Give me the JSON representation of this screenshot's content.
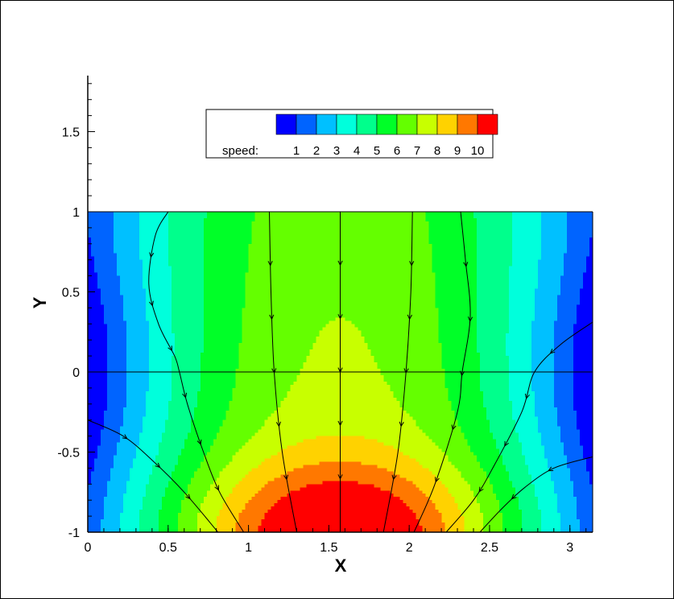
{
  "chart_data": {
    "type": "heatmap",
    "title": "",
    "xlabel": "X",
    "ylabel": "Y",
    "xlim": [
      0,
      3.1416
    ],
    "ylim": [
      -1,
      1.85
    ],
    "data_ylim": [
      -1,
      1
    ],
    "x_ticks": [
      0,
      0.5,
      1,
      1.5,
      2,
      2.5,
      3
    ],
    "x_tick_labels": [
      "0",
      "0.5",
      "1",
      "1.5",
      "2",
      "2.5",
      "3"
    ],
    "y_ticks": [
      -1,
      -0.5,
      0,
      0.5,
      1,
      1.5
    ],
    "y_tick_labels": [
      "-1",
      "-0.5",
      "0",
      "0.5",
      "1",
      "1.5"
    ],
    "legend": {
      "title": "speed:",
      "placement": "top-center",
      "levels": [
        {
          "label": "",
          "color": "#0000ff"
        },
        {
          "label": "1",
          "color": "#0064ff"
        },
        {
          "label": "2",
          "color": "#00c0ff"
        },
        {
          "label": "3",
          "color": "#00ffdc"
        },
        {
          "label": "4",
          "color": "#00ff8c"
        },
        {
          "label": "5",
          "color": "#00ff28"
        },
        {
          "label": "6",
          "color": "#64ff00"
        },
        {
          "label": "7",
          "color": "#c8ff00"
        },
        {
          "label": "8",
          "color": "#ffd200"
        },
        {
          "label": "9",
          "color": "#ff7800"
        },
        {
          "label": "10",
          "color": "#ff0000"
        }
      ]
    },
    "contour_levels": [
      1,
      2,
      3,
      4,
      5,
      6,
      7,
      8,
      9,
      10
    ],
    "speed_range": [
      0,
      10.5
    ],
    "grid": false,
    "streamlines": [
      {
        "points": [
          [
            0.5,
            1.0
          ],
          [
            0.42,
            0.85
          ],
          [
            0.38,
            0.55
          ],
          [
            0.44,
            0.3
          ],
          [
            0.54,
            0.1
          ],
          [
            0.57,
            0.0
          ],
          [
            0.62,
            -0.2
          ],
          [
            0.72,
            -0.5
          ],
          [
            0.82,
            -0.75
          ],
          [
            0.97,
            -1.0
          ]
        ]
      },
      {
        "points": [
          [
            1.13,
            1.0
          ],
          [
            1.14,
            0.5
          ],
          [
            1.16,
            0.0
          ],
          [
            1.21,
            -0.5
          ],
          [
            1.3,
            -1.0
          ]
        ]
      },
      {
        "points": [
          [
            1.5708,
            1.0
          ],
          [
            1.5708,
            0.0
          ],
          [
            1.5708,
            -1.0
          ]
        ]
      },
      {
        "points": [
          [
            2.02,
            1.0
          ],
          [
            2.01,
            0.5
          ],
          [
            1.98,
            0.0
          ],
          [
            1.93,
            -0.5
          ],
          [
            1.84,
            -1.0
          ]
        ]
      },
      {
        "points": [
          [
            2.32,
            1.0
          ],
          [
            2.35,
            0.7
          ],
          [
            2.38,
            0.35
          ],
          [
            2.33,
            0.0
          ],
          [
            2.3,
            -0.25
          ],
          [
            2.16,
            -0.7
          ],
          [
            2.03,
            -1.0
          ]
        ]
      },
      {
        "points": [
          [
            3.14,
            0.31
          ],
          [
            2.94,
            0.17
          ],
          [
            2.78,
            0.0
          ],
          [
            2.7,
            -0.25
          ],
          [
            2.52,
            -0.6
          ],
          [
            2.4,
            -0.8
          ],
          [
            2.23,
            -1.0
          ]
        ]
      },
      {
        "points": [
          [
            0.0,
            -0.3
          ],
          [
            0.22,
            -0.4
          ],
          [
            0.4,
            -0.55
          ],
          [
            0.6,
            -0.75
          ],
          [
            0.81,
            -1.0
          ]
        ]
      },
      {
        "points": [
          [
            3.14,
            -0.53
          ],
          [
            2.9,
            -0.6
          ],
          [
            2.72,
            -0.72
          ],
          [
            2.58,
            -0.85
          ],
          [
            2.44,
            -1.0
          ]
        ]
      }
    ],
    "reference_line_y": 0
  }
}
